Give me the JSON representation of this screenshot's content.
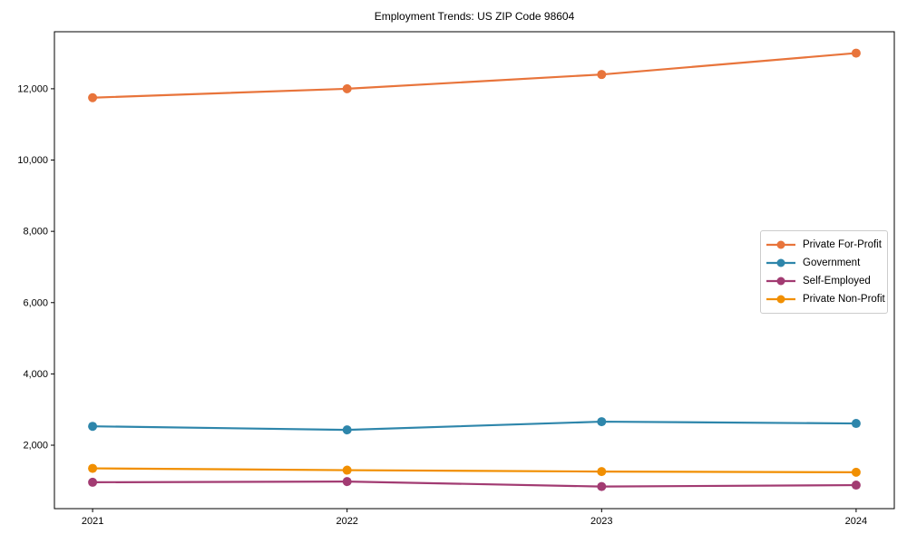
{
  "chart_data": {
    "type": "line",
    "title": "Employment Trends: US ZIP Code 98604",
    "x": [
      2021,
      2022,
      2023,
      2024
    ],
    "x_tick_labels": [
      "2021",
      "2022",
      "2023",
      "2024"
    ],
    "series": [
      {
        "name": "Private For-Profit",
        "color": "#E8743B",
        "values": [
          11750,
          12000,
          12400,
          13000
        ]
      },
      {
        "name": "Government",
        "color": "#2E86AB",
        "values": [
          2530,
          2430,
          2660,
          2610
        ]
      },
      {
        "name": "Self-Employed",
        "color": "#A23B72",
        "values": [
          960,
          980,
          840,
          880
        ]
      },
      {
        "name": "Private Non-Profit",
        "color": "#F18F01",
        "values": [
          1350,
          1300,
          1260,
          1240
        ]
      }
    ],
    "xlim": [
      2020.85,
      2024.15
    ],
    "ylim": [
      220,
      13600
    ],
    "yticks": [
      2000,
      4000,
      6000,
      8000,
      10000,
      12000
    ],
    "ytick_labels": [
      "2,000",
      "4,000",
      "6,000",
      "8,000",
      "10,000",
      "12,000"
    ],
    "grid": false,
    "legend_position": "center right",
    "marker": "circle",
    "line_width": 2.2,
    "marker_radius": 5,
    "axis_color": "#000000",
    "background_color": "#ffffff"
  }
}
